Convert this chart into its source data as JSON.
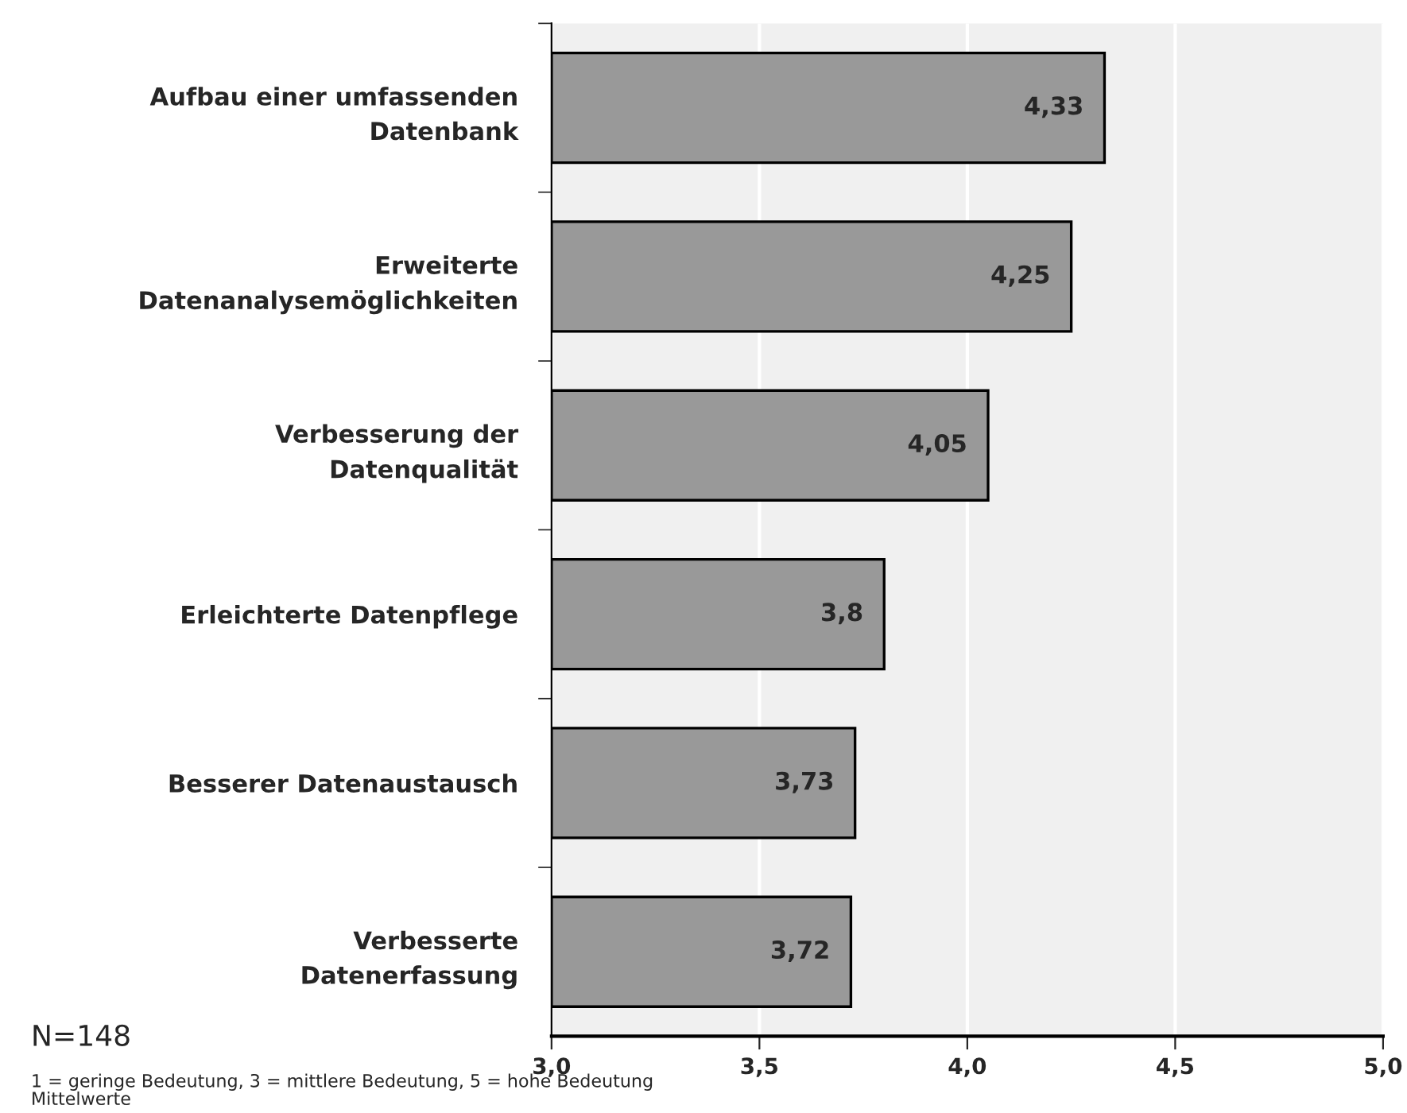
{
  "chart_data": {
    "type": "bar",
    "orientation": "horizontal",
    "categories": [
      "Aufbau einer umfassenden\nDatenbank",
      "Erweiterte\nDatenanalysemöglichkeiten",
      "Verbesserung der\nDatenqualität",
      "Erleichterte Datenpflege",
      "Besserer Datenaustausch",
      "Verbesserte\nDatenerfassung"
    ],
    "values": [
      4.33,
      4.25,
      4.05,
      3.8,
      3.73,
      3.72
    ],
    "value_labels": [
      "4,33",
      "4,25",
      "4,05",
      "3,8",
      "3,73",
      "3,72"
    ],
    "color": "#999999",
    "xlim": [
      3.0,
      5.0
    ],
    "xticks": [
      {
        "value": 3.0,
        "label": "3,0"
      },
      {
        "value": 3.5,
        "label": "3,5"
      },
      {
        "value": 4.0,
        "label": "4,0"
      },
      {
        "value": 4.5,
        "label": "4,5"
      },
      {
        "value": 5.0,
        "label": "5,0"
      }
    ],
    "grid": "x",
    "annotations": [
      "N=148",
      "1 = geringe Bedeutung, 3 = mittlere Bedeutung, 5 = hohe Bedeutung",
      "Mittelwerte"
    ]
  }
}
